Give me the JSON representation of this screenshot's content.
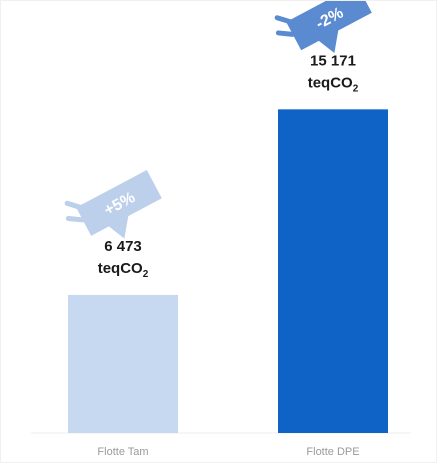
{
  "chart_data": {
    "type": "bar",
    "categories": [
      "Flotte Tam",
      "Flotte DPE"
    ],
    "values": [
      6473,
      15171
    ],
    "value_labels": [
      "6 473",
      "15 171"
    ],
    "unit_main": "teqCO",
    "unit_sub": "2",
    "change_badges": [
      "+5%",
      "-2%"
    ],
    "bar_colors": [
      "#c7d9f1",
      "#0f62c6"
    ],
    "badge_colors": [
      "#bccfeb",
      "#5a8ad0"
    ],
    "ylim": [
      0,
      18000
    ]
  }
}
